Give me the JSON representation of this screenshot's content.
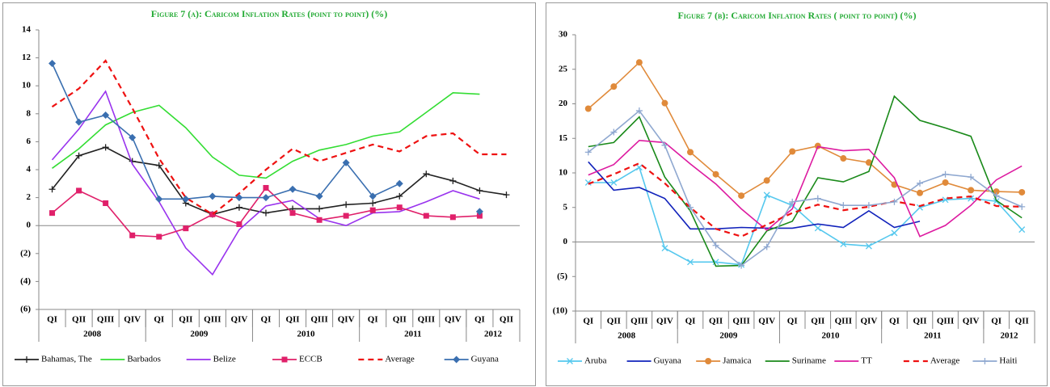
{
  "chart_data": [
    {
      "type": "line",
      "title": "Figure 7 (a): Caricom Inflation Rates (point to point) (%)",
      "categories": [
        "QI",
        "QII",
        "QIII",
        "QIV",
        "QI",
        "QII",
        "QIII",
        "QIV",
        "QI",
        "QII",
        "QIII",
        "QIV",
        "QI",
        "QII",
        "QIII",
        "QIV",
        "QI",
        "QII"
      ],
      "groups": [
        {
          "label": "2008",
          "size": 4
        },
        {
          "label": "2009",
          "size": 4
        },
        {
          "label": "2010",
          "size": 4
        },
        {
          "label": "2011",
          "size": 4
        },
        {
          "label": "2012",
          "size": 2
        }
      ],
      "ylim": [
        -6,
        14
      ],
      "yticks": [
        {
          "value": -6,
          "label": "(6)"
        },
        {
          "value": -4,
          "label": "(4)"
        },
        {
          "value": -2,
          "label": "(2)"
        },
        0,
        2,
        4,
        6,
        8,
        10,
        12,
        14
      ],
      "grid": false,
      "series": [
        {
          "name": "Bahamas, The",
          "color": "#222222",
          "marker": "plus",
          "dash": false,
          "values": [
            2.6,
            5.0,
            5.6,
            4.6,
            4.3,
            1.6,
            0.8,
            1.3,
            0.9,
            1.2,
            1.2,
            1.5,
            1.6,
            2.1,
            3.7,
            3.2,
            2.5,
            2.2
          ]
        },
        {
          "name": "Barbados",
          "color": "#33dd33",
          "marker": null,
          "dash": false,
          "values": [
            4.1,
            5.5,
            7.2,
            8.1,
            8.6,
            7.0,
            4.9,
            3.6,
            3.4,
            4.6,
            5.4,
            5.8,
            6.4,
            6.7,
            8.1,
            9.5,
            9.4,
            null
          ]
        },
        {
          "name": "Belize",
          "color": "#9933ee",
          "marker": null,
          "dash": false,
          "values": [
            4.7,
            6.9,
            9.6,
            4.4,
            1.7,
            -1.6,
            -3.5,
            -0.3,
            1.4,
            1.8,
            0.5,
            0.0,
            0.9,
            1.0,
            1.7,
            2.5,
            1.9,
            null
          ]
        },
        {
          "name": "ECCB",
          "color": "#e0206a",
          "marker": "square",
          "dash": false,
          "values": [
            0.9,
            2.5,
            1.6,
            -0.7,
            -0.8,
            -0.2,
            0.8,
            0.1,
            2.7,
            0.9,
            0.4,
            0.7,
            1.1,
            1.3,
            0.7,
            0.6,
            0.7,
            null
          ]
        },
        {
          "name": "Average",
          "color": "#ee1111",
          "marker": null,
          "dash": true,
          "values": [
            8.5,
            9.8,
            11.8,
            8.4,
            4.8,
            2.0,
            0.8,
            2.3,
            4.0,
            5.5,
            4.6,
            5.2,
            5.8,
            5.3,
            6.4,
            6.6,
            5.1,
            5.1
          ]
        },
        {
          "name": "Guyana",
          "color": "#3a6fb0",
          "marker": "diamond",
          "dash": false,
          "values": [
            11.6,
            7.4,
            7.9,
            6.3,
            1.9,
            1.9,
            2.1,
            2.0,
            2.0,
            2.6,
            2.1,
            4.5,
            2.1,
            3.0,
            null,
            null,
            1.0,
            null
          ]
        }
      ]
    },
    {
      "type": "line",
      "title": "Figure 7 (b): Caricom  Inflation Rates ( point to point) (%)",
      "categories": [
        "QI",
        "QII",
        "QIII",
        "QIV",
        "QI",
        "QII",
        "QIII",
        "QIV",
        "QI",
        "QII",
        "QIII",
        "QIV",
        "QI",
        "QII",
        "QIII",
        "QIV",
        "QI",
        "QII"
      ],
      "groups": [
        {
          "label": "2008",
          "size": 4
        },
        {
          "label": "2009",
          "size": 4
        },
        {
          "label": "2010",
          "size": 4
        },
        {
          "label": "2011",
          "size": 4
        },
        {
          "label": "2012",
          "size": 2
        }
      ],
      "ylim": [
        -10,
        30
      ],
      "yticks": [
        {
          "value": -10,
          "label": "(10)"
        },
        {
          "value": -5,
          "label": "(5)"
        },
        0,
        5,
        10,
        15,
        20,
        25,
        30
      ],
      "grid": false,
      "series": [
        {
          "name": "Aruba",
          "color": "#55c8ee",
          "marker": "x",
          "dash": false,
          "values": [
            8.6,
            8.6,
            10.8,
            -0.9,
            -2.9,
            -2.9,
            -3.3,
            6.8,
            5.3,
            2.0,
            -0.3,
            -0.6,
            1.3,
            5.0,
            6.1,
            6.3,
            5.9,
            1.8
          ]
        },
        {
          "name": "Guyana",
          "color": "#1122bb",
          "marker": null,
          "dash": false,
          "values": [
            11.6,
            7.5,
            7.9,
            6.3,
            1.9,
            1.9,
            2.1,
            2.0,
            2.0,
            2.6,
            2.1,
            4.5,
            2.1,
            3.0,
            null,
            null,
            null,
            null
          ]
        },
        {
          "name": "Jamaica",
          "color": "#e08a3a",
          "marker": "circle",
          "dash": false,
          "values": [
            19.3,
            22.5,
            26.0,
            20.1,
            13.0,
            9.8,
            6.7,
            8.9,
            13.1,
            13.9,
            12.1,
            11.5,
            8.3,
            7.1,
            8.6,
            7.5,
            7.3,
            7.2
          ]
        },
        {
          "name": "Suriname",
          "color": "#1a8a1a",
          "marker": null,
          "dash": false,
          "values": [
            13.8,
            14.4,
            18.1,
            9.4,
            4.5,
            -3.5,
            -3.4,
            1.6,
            3.0,
            9.3,
            8.7,
            10.2,
            21.1,
            17.6,
            16.5,
            15.3,
            6.0,
            3.5
          ]
        },
        {
          "name": "TT",
          "color": "#dd1aa0",
          "marker": null,
          "dash": false,
          "values": [
            9.7,
            11.2,
            14.7,
            14.4,
            11.3,
            8.4,
            4.8,
            1.7,
            4.8,
            13.8,
            13.2,
            13.4,
            9.3,
            0.8,
            2.4,
            5.3,
            9.0,
            11.0
          ]
        },
        {
          "name": "Average",
          "color": "#ee1111",
          "marker": null,
          "dash": true,
          "values": [
            8.4,
            9.8,
            11.4,
            8.5,
            5.0,
            1.9,
            0.8,
            2.5,
            4.2,
            5.4,
            4.6,
            5.1,
            5.9,
            5.2,
            6.3,
            6.6,
            5.2,
            5.1
          ]
        },
        {
          "name": "Haiti",
          "color": "#8fa8d0",
          "marker": "plus",
          "dash": false,
          "values": [
            13.0,
            15.9,
            19.0,
            14.0,
            5.0,
            -0.5,
            -3.4,
            -0.7,
            5.8,
            6.3,
            5.3,
            5.3,
            5.8,
            8.5,
            9.8,
            9.4,
            6.7,
            5.1
          ]
        }
      ]
    }
  ]
}
